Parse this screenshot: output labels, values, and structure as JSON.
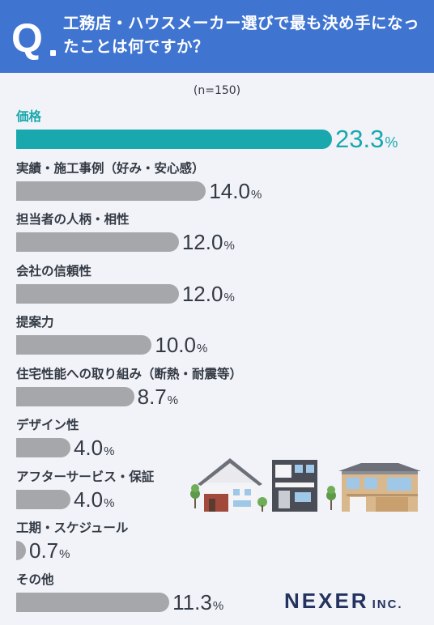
{
  "header": {
    "q_mark": "Q",
    "question": "工務店・ハウスメーカー選びで最も決め手になったことは何ですか？"
  },
  "sample_size": "(n=150)",
  "logo": {
    "main": "NEXER",
    "sub": "INC."
  },
  "colors": {
    "header": "#3f74d1",
    "highlight": "#18a8ad",
    "bar": "#a6a7ab",
    "background": "#f2f3f8"
  },
  "chart_data": {
    "type": "bar",
    "orientation": "horizontal",
    "unit": "%",
    "categories": [
      "価格",
      "実績・施工事例（好み・安心感）",
      "担当者の人柄・相性",
      "会社の信頼性",
      "提案力",
      "住宅性能への取り組み（断熱・耐震等）",
      "デザイン性",
      "アフターサービス・保証",
      "工期・スケジュール",
      "その他"
    ],
    "values": [
      23.3,
      14.0,
      12.0,
      12.0,
      10.0,
      8.7,
      4.0,
      4.0,
      0.7,
      11.3
    ],
    "value_labels": [
      "23.3",
      "14.0",
      "12.0",
      "12.0",
      "10.0",
      "8.7",
      "4.0",
      "4.0",
      "0.7",
      "11.3"
    ],
    "highlight_index": 0
  }
}
